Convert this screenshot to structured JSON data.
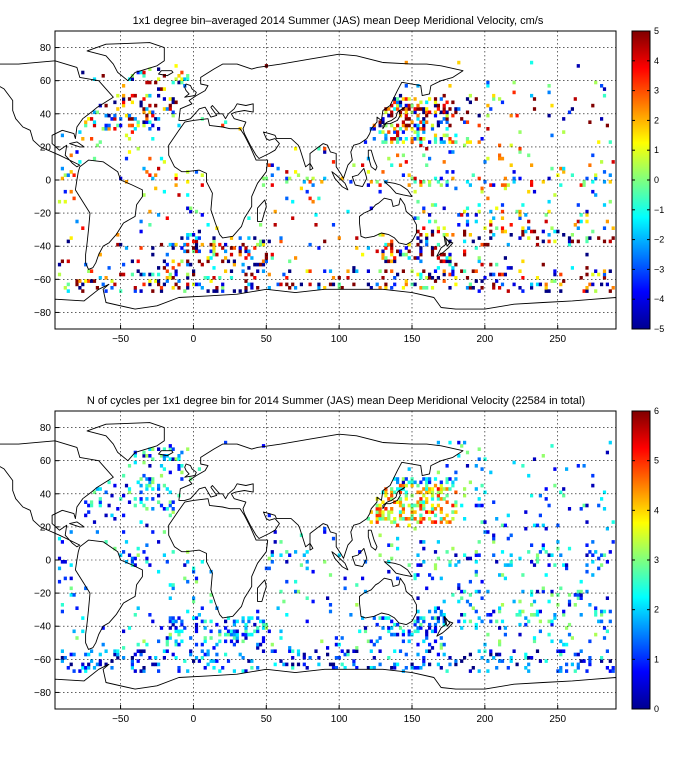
{
  "chart_data": [
    {
      "type": "heatmap",
      "title": "1x1 degree bin–averaged 2014 Summer (JAS) mean Deep Meridional Velocity, cm/s",
      "xlim": [
        -95,
        290
      ],
      "ylim": [
        -90,
        90
      ],
      "x_ticks": [
        -50,
        0,
        50,
        100,
        150,
        200,
        250
      ],
      "x_tick_labels": [
        "−50",
        "0",
        "50",
        "100",
        "150",
        "200",
        "250"
      ],
      "y_ticks": [
        80,
        60,
        40,
        20,
        0,
        -20,
        -40,
        -60,
        -80
      ],
      "y_tick_labels": [
        "80",
        "60",
        "40",
        "20",
        "0",
        "−20",
        "−40",
        "−60",
        "−80"
      ],
      "grid": true,
      "colorbar": {
        "ticks": [
          5,
          4,
          3,
          2,
          1,
          0,
          -1,
          -2,
          -3,
          -4,
          -5
        ],
        "tick_labels": [
          "5",
          "4",
          "3",
          "2",
          "1",
          "0",
          "−1",
          "−2",
          "−3",
          "−4",
          "−5"
        ],
        "range": [
          -5,
          5
        ],
        "colormap": "jet"
      }
    },
    {
      "type": "heatmap",
      "title": "N of cycles per 1x1 degree bin for 2014 Summer (JAS) mean Deep Meridional Velocity (22584 in total)",
      "xlim": [
        -95,
        290
      ],
      "ylim": [
        -90,
        90
      ],
      "x_ticks": [
        -50,
        0,
        50,
        100,
        150,
        200,
        250
      ],
      "x_tick_labels": [
        "−50",
        "0",
        "50",
        "100",
        "150",
        "200",
        "250"
      ],
      "y_ticks": [
        80,
        60,
        40,
        20,
        0,
        -20,
        -40,
        -60,
        -80
      ],
      "y_tick_labels": [
        "80",
        "60",
        "40",
        "20",
        "0",
        "−20",
        "−40",
        "−60",
        "−80"
      ],
      "grid": true,
      "colorbar": {
        "ticks": [
          6,
          5,
          4,
          3,
          2,
          1,
          0
        ],
        "tick_labels": [
          "6",
          "5",
          "4",
          "3",
          "2",
          "1",
          "0"
        ],
        "range": [
          0,
          6
        ],
        "colormap": "jet"
      }
    }
  ]
}
